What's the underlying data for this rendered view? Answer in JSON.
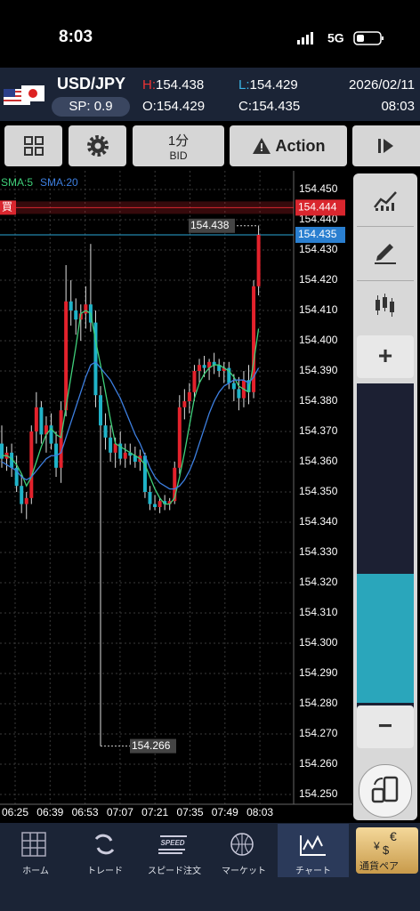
{
  "status": {
    "time": "8:03",
    "network": "5G"
  },
  "header": {
    "pair": "USD/JPY",
    "spread_label": "SP:",
    "spread": 0.9,
    "high_label": "H:",
    "high": 154.438,
    "low_label": "L:",
    "low": 154.429,
    "open_label": "O:",
    "open": 154.429,
    "close_label": "C:",
    "close": 154.435,
    "date": "2026/02/11",
    "time": "08:03"
  },
  "toolbar": {
    "interval": "1分",
    "price_type": "BID",
    "action": "Action"
  },
  "chart_data": {
    "type": "candlestick",
    "up_color": "#e3222c",
    "down_color": "#1fb3c8",
    "grid": true,
    "ylim": [
      154.245,
      154.455
    ],
    "yticks": [
      {
        "value": 154.25,
        "label": "154.250"
      },
      {
        "value": 154.26,
        "label": "154.260"
      },
      {
        "value": 154.27,
        "label": "154.270"
      },
      {
        "value": 154.28,
        "label": "154.280"
      },
      {
        "value": 154.29,
        "label": "154.290"
      },
      {
        "value": 154.3,
        "label": "154.300"
      },
      {
        "value": 154.31,
        "label": "154.310"
      },
      {
        "value": 154.32,
        "label": "154.320"
      },
      {
        "value": 154.33,
        "label": "154.330"
      },
      {
        "value": 154.34,
        "label": "154.340"
      },
      {
        "value": 154.35,
        "label": "154.350"
      },
      {
        "value": 154.36,
        "label": "154.360"
      },
      {
        "value": 154.37,
        "label": "154.370"
      },
      {
        "value": 154.38,
        "label": "154.380"
      },
      {
        "value": 154.39,
        "label": "154.390"
      },
      {
        "value": 154.4,
        "label": "154.400"
      },
      {
        "value": 154.41,
        "label": "154.410"
      },
      {
        "value": 154.42,
        "label": "154.420"
      },
      {
        "value": 154.43,
        "label": "154.430"
      },
      {
        "value": 154.44,
        "label": "154.440"
      },
      {
        "value": 154.45,
        "label": "154.450"
      }
    ],
    "x_labels": [
      "06:25",
      "06:39",
      "06:53",
      "07:07",
      "07:21",
      "07:35",
      "07:49",
      "08:03"
    ],
    "buy_label": "買",
    "buy_price": 154.444,
    "current_price": 154.435,
    "high_marker": 154.438,
    "low_marker": 154.266,
    "candles": [
      [
        154.366,
        154.372,
        154.358,
        154.361
      ],
      [
        154.361,
        154.365,
        154.357,
        154.363
      ],
      [
        154.363,
        154.366,
        154.355,
        154.358
      ],
      [
        154.358,
        154.362,
        154.35,
        154.352
      ],
      [
        154.352,
        154.356,
        154.343,
        154.346
      ],
      [
        154.346,
        154.35,
        154.341,
        154.348
      ],
      [
        154.348,
        154.372,
        154.346,
        154.37
      ],
      [
        154.37,
        154.383,
        154.366,
        154.378
      ],
      [
        154.378,
        154.38,
        154.366,
        154.369
      ],
      [
        154.369,
        154.375,
        154.363,
        154.372
      ],
      [
        154.372,
        154.376,
        154.364,
        154.366
      ],
      [
        154.366,
        154.37,
        154.355,
        154.358
      ],
      [
        154.358,
        154.38,
        154.353,
        154.377
      ],
      [
        154.377,
        154.425,
        154.375,
        154.413
      ],
      [
        154.413,
        154.42,
        154.405,
        154.41
      ],
      [
        154.41,
        154.414,
        154.402,
        154.407
      ],
      [
        154.407,
        154.412,
        154.4,
        154.409
      ],
      [
        154.409,
        154.418,
        154.404,
        154.412
      ],
      [
        154.412,
        154.432,
        154.403,
        154.406
      ],
      [
        154.406,
        154.41,
        154.378,
        154.382
      ],
      [
        154.382,
        154.385,
        154.266,
        154.372
      ],
      [
        154.372,
        154.376,
        154.364,
        154.368
      ],
      [
        154.368,
        154.372,
        154.36,
        154.363
      ],
      [
        154.363,
        154.368,
        154.358,
        154.366
      ],
      [
        154.366,
        154.37,
        154.359,
        154.361
      ],
      [
        154.361,
        154.366,
        154.358,
        154.363
      ],
      [
        154.363,
        154.366,
        154.359,
        154.362
      ],
      [
        154.362,
        154.365,
        154.358,
        154.36
      ],
      [
        154.36,
        154.364,
        154.357,
        154.362
      ],
      [
        154.362,
        154.363,
        154.348,
        154.35
      ],
      [
        154.35,
        154.352,
        154.344,
        154.346
      ],
      [
        154.346,
        154.349,
        154.344,
        154.345
      ],
      [
        154.345,
        154.348,
        154.343,
        154.347
      ],
      [
        154.347,
        154.349,
        154.344,
        154.346
      ],
      [
        154.346,
        154.348,
        154.344,
        154.347
      ],
      [
        154.347,
        154.36,
        154.346,
        154.358
      ],
      [
        154.358,
        154.382,
        154.356,
        154.378
      ],
      [
        154.378,
        154.384,
        154.374,
        154.38
      ],
      [
        154.38,
        154.386,
        154.376,
        154.383
      ],
      [
        154.383,
        154.392,
        154.38,
        154.39
      ],
      [
        154.39,
        154.394,
        154.386,
        154.392
      ],
      [
        154.392,
        154.395,
        154.388,
        154.391
      ],
      [
        154.391,
        154.394,
        154.387,
        154.393
      ],
      [
        154.393,
        154.396,
        154.389,
        154.392
      ],
      [
        154.392,
        154.394,
        154.388,
        154.39
      ],
      [
        154.39,
        154.393,
        154.386,
        154.391
      ],
      [
        154.391,
        154.393,
        154.384,
        154.386
      ],
      [
        154.386,
        154.389,
        154.38,
        154.384
      ],
      [
        154.384,
        154.388,
        154.377,
        154.381
      ],
      [
        154.381,
        154.39,
        154.378,
        154.387
      ],
      [
        154.387,
        154.392,
        154.379,
        154.383
      ],
      [
        154.383,
        154.42,
        154.381,
        154.418
      ],
      [
        154.418,
        154.438,
        154.415,
        154.435
      ]
    ],
    "series": [
      {
        "name": "SMA:5",
        "color": "#3fd07a",
        "values": [
          154.362,
          154.362,
          154.361,
          154.359,
          154.356,
          154.352,
          154.355,
          154.36,
          154.365,
          154.369,
          154.371,
          154.369,
          154.368,
          154.378,
          154.388,
          154.398,
          154.409,
          154.41,
          154.409,
          154.4,
          154.392,
          154.383,
          154.374,
          154.366,
          154.365,
          154.364,
          154.363,
          154.362,
          154.361,
          154.359,
          154.355,
          154.351,
          154.348,
          154.346,
          154.346,
          154.348,
          154.355,
          154.363,
          154.372,
          154.381,
          154.386,
          154.389,
          154.391,
          154.392,
          154.392,
          154.391,
          154.39,
          154.388,
          154.385,
          154.384,
          154.383,
          154.393,
          154.404
        ]
      },
      {
        "name": "SMA:20",
        "color": "#3d7fe0",
        "values": [
          154.36,
          154.359,
          154.358,
          154.357,
          154.355,
          154.354,
          154.355,
          154.357,
          154.359,
          154.361,
          154.362,
          154.362,
          154.363,
          154.368,
          154.373,
          154.378,
          154.383,
          154.388,
          154.392,
          154.393,
          154.391,
          154.389,
          154.387,
          154.384,
          154.381,
          154.377,
          154.373,
          154.369,
          154.366,
          154.362,
          154.358,
          154.355,
          154.353,
          154.352,
          154.351,
          154.351,
          154.352,
          154.354,
          154.357,
          154.361,
          154.366,
          154.371,
          154.376,
          154.38,
          154.383,
          154.385,
          154.386,
          154.387,
          154.387,
          154.387,
          154.386,
          154.388,
          154.391
        ]
      }
    ]
  },
  "side_panel": {
    "zoom_in": "+",
    "zoom_out": "−"
  },
  "tabs": {
    "items": [
      "ホーム",
      "トレード",
      "スピード注文",
      "マーケット",
      "チャート"
    ],
    "speed_icon": "SPEED",
    "pair_button": "通貨ペア",
    "pair_icon": [
      "€",
      "¥",
      "$"
    ]
  }
}
